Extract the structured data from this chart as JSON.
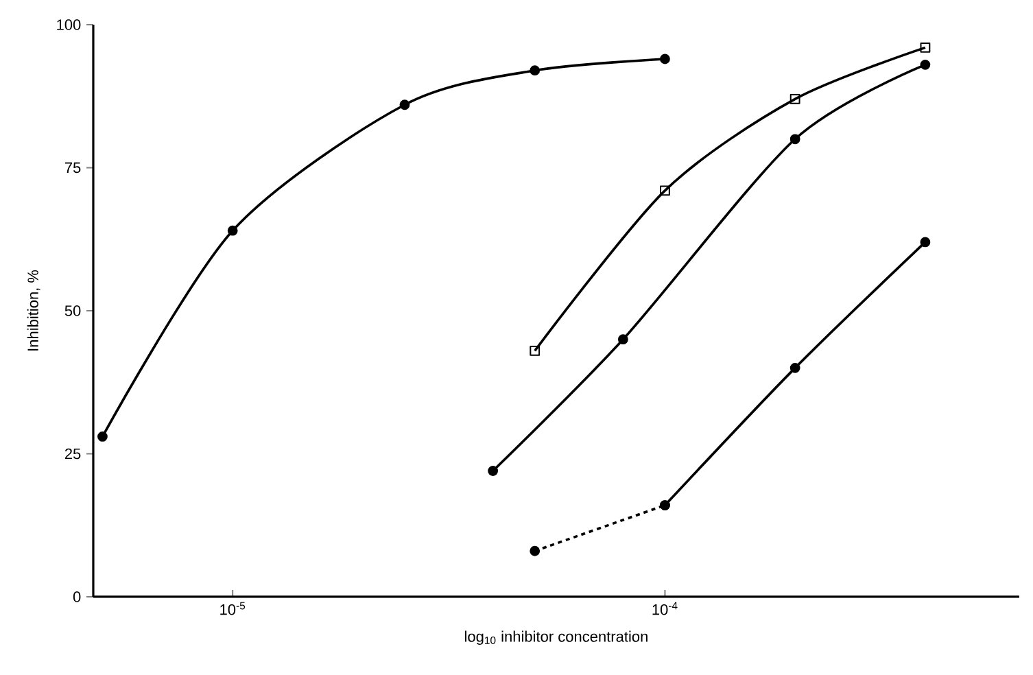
{
  "chart_data": {
    "type": "line",
    "xlabel": "log$_{10}$ inhibitor concentration",
    "ylabel": "Inhibition,   %",
    "log": "x",
    "xlim": [
      4.76e-06,
      0.00066
    ],
    "ylim": [
      0,
      100
    ],
    "xticks": [
      {
        "value": 1e-05,
        "label": "10$^{-5}$"
      },
      {
        "value": 0.0001,
        "label": "10$^{-4}$"
      }
    ],
    "yticks": [
      0,
      25,
      50,
      75,
      100
    ],
    "series": [
      {
        "color": "#000000",
        "marker": "circle",
        "line_style": "solid",
        "x": [
          5e-06,
          1e-05,
          2.5e-05,
          5e-05,
          0.0001
        ],
        "values": [
          28,
          64,
          86,
          92,
          94
        ]
      },
      {
        "color": "#000000",
        "marker": "square",
        "line_style": "solid",
        "x": [
          5e-05,
          0.0001,
          0.0002,
          0.0004
        ],
        "values": [
          43,
          71,
          87,
          96
        ]
      },
      {
        "color": "#000000",
        "marker": "circle",
        "line_style": "solid",
        "x": [
          4e-05,
          8e-05,
          0.0002,
          0.0004
        ],
        "values": [
          22,
          45,
          80,
          93
        ]
      },
      {
        "color": "#000000",
        "marker": "circle",
        "line_style": "dashed",
        "x": [
          5e-05,
          0.0001
        ],
        "values": [
          8,
          16
        ]
      },
      {
        "color": "#000000",
        "marker": "circle",
        "line_style": "solid",
        "x": [
          0.0001,
          0.0002,
          0.0004
        ],
        "values": [
          16,
          40,
          62
        ]
      }
    ]
  }
}
